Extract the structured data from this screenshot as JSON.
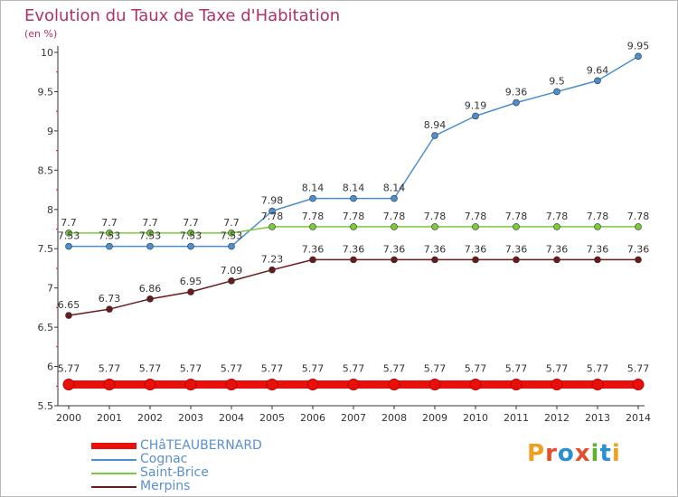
{
  "title": "Evolution du Taux de Taxe d'Habitation",
  "subtitle": "(en %)",
  "logo": {
    "text": "Proxiti",
    "colors": [
      "#f0a020",
      "#e05030",
      "#2a90d0",
      "#e05030",
      "#60b030",
      "#2a90d0",
      "#f0a020"
    ]
  },
  "chart_data": {
    "type": "line",
    "title": "Evolution du Taux de Taxe d'Habitation",
    "ylabel": "(en %)",
    "xlabel": "",
    "ylim": [
      5.5,
      10
    ],
    "yticks": [
      "5.5",
      "6",
      "6.5",
      "7",
      "7.5",
      "8",
      "8.5",
      "9",
      "9.5",
      "10"
    ],
    "x": [
      "2000",
      "2001",
      "2002",
      "2003",
      "2004",
      "2005",
      "2006",
      "2007",
      "2008",
      "2009",
      "2010",
      "2011",
      "2012",
      "2013",
      "2014"
    ],
    "grid": false,
    "legend_position": "bottom-left",
    "series": [
      {
        "name": "CHâTEAUBERNARD",
        "color": "#e8100a",
        "values": [
          5.77,
          5.77,
          5.77,
          5.77,
          5.77,
          5.77,
          5.77,
          5.77,
          5.77,
          5.77,
          5.77,
          5.77,
          5.77,
          5.77,
          5.77
        ],
        "labels": [
          "5.77",
          "5.77",
          "5.77",
          "5.77",
          "5.77",
          "5.77",
          "5.77",
          "5.77",
          "5.77",
          "5.77",
          "5.77",
          "5.77",
          "5.77",
          "5.77",
          "5.77"
        ],
        "thick": true
      },
      {
        "name": "Cognac",
        "color": "#4a8fd0",
        "values": [
          7.53,
          7.53,
          7.53,
          7.53,
          7.53,
          7.98,
          8.14,
          8.14,
          8.14,
          8.94,
          9.19,
          9.36,
          9.5,
          9.64,
          9.95
        ],
        "labels": [
          "7.53",
          "7.53",
          "7.53",
          "7.53",
          "7.53",
          "7.98",
          "8.14",
          "8.14",
          "8.14",
          "8.94",
          "9.19",
          "9.36",
          "9.5",
          "9.64",
          "9.95"
        ],
        "thick": false
      },
      {
        "name": "Saint-Brice",
        "color": "#7acc3c",
        "values": [
          7.7,
          7.7,
          7.7,
          7.7,
          7.7,
          7.78,
          7.78,
          7.78,
          7.78,
          7.78,
          7.78,
          7.78,
          7.78,
          7.78,
          7.78
        ],
        "labels": [
          "7.7",
          "7.7",
          "7.7",
          "7.7",
          "7.7",
          "7.78",
          "7.78",
          "7.78",
          "7.78",
          "7.78",
          "7.78",
          "7.78",
          "7.78",
          "7.78",
          "7.78"
        ],
        "thick": false
      },
      {
        "name": "Merpins",
        "color": "#6a1a1a",
        "values": [
          6.65,
          6.73,
          6.86,
          6.95,
          7.09,
          7.23,
          7.36,
          7.36,
          7.36,
          7.36,
          7.36,
          7.36,
          7.36,
          7.36,
          7.36
        ],
        "labels": [
          "6.65",
          "6.73",
          "6.86",
          "6.95",
          "7.09",
          "7.23",
          "7.36",
          "7.36",
          "7.36",
          "7.36",
          "7.36",
          "7.36",
          "7.36",
          "7.36",
          "7.36"
        ],
        "thick": false
      }
    ]
  }
}
